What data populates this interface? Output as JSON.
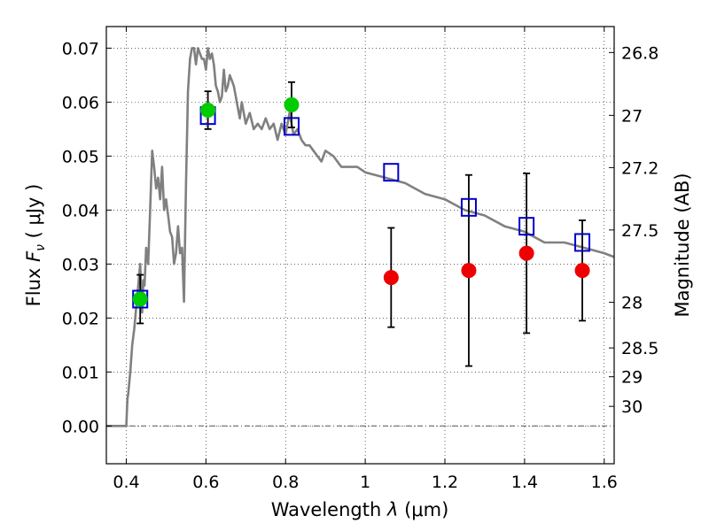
{
  "chart_data": {
    "type": "scatter",
    "xlabel": "Wavelength",
    "xlabel_symbol": "λ",
    "xlabel_unit": "(μm)",
    "ylabel": "Flux",
    "ylabel_symbol": "F",
    "ylabel_subscript": "ν",
    "ylabel_unit": "( μJy )",
    "y2label": "Magnitude (AB)",
    "xlim": [
      0.35,
      1.625
    ],
    "ylim": [
      -0.007,
      0.074
    ],
    "xticks": [
      {
        "value": 0.4,
        "label": "0.4"
      },
      {
        "value": 0.6,
        "label": "0.6"
      },
      {
        "value": 0.8,
        "label": "0.8"
      },
      {
        "value": 1.0,
        "label": "1"
      },
      {
        "value": 1.2,
        "label": "1.2"
      },
      {
        "value": 1.4,
        "label": "1.4"
      },
      {
        "value": 1.6,
        "label": "1.6"
      }
    ],
    "yticks": [
      {
        "value": 0.0,
        "label": "0.00"
      },
      {
        "value": 0.01,
        "label": "0.01"
      },
      {
        "value": 0.02,
        "label": "0.02"
      },
      {
        "value": 0.03,
        "label": "0.03"
      },
      {
        "value": 0.04,
        "label": "0.04"
      },
      {
        "value": 0.05,
        "label": "0.05"
      },
      {
        "value": 0.06,
        "label": "0.06"
      },
      {
        "value": 0.07,
        "label": "0.07"
      }
    ],
    "mag_ticks": [
      {
        "mag": 26.8,
        "label": "26.8"
      },
      {
        "mag": 27.0,
        "label": "27"
      },
      {
        "mag": 27.2,
        "label": "27.2"
      },
      {
        "mag": 27.5,
        "label": "27.5"
      },
      {
        "mag": 28.0,
        "label": "28"
      },
      {
        "mag": 28.5,
        "label": "28.5"
      },
      {
        "mag": 29.0,
        "label": "29"
      },
      {
        "mag": 30.0,
        "label": "30"
      }
    ],
    "grid": true,
    "series": [
      {
        "name": "model_spectrum",
        "kind": "line",
        "color": "#808080",
        "x": [
          0.35,
          0.4,
          0.403,
          0.405,
          0.41,
          0.415,
          0.42,
          0.425,
          0.43,
          0.435,
          0.44,
          0.443,
          0.446,
          0.45,
          0.455,
          0.46,
          0.465,
          0.47,
          0.475,
          0.48,
          0.485,
          0.49,
          0.495,
          0.5,
          0.505,
          0.51,
          0.515,
          0.52,
          0.525,
          0.53,
          0.535,
          0.54,
          0.545,
          0.55,
          0.555,
          0.56,
          0.565,
          0.57,
          0.575,
          0.58,
          0.585,
          0.59,
          0.595,
          0.6,
          0.605,
          0.61,
          0.615,
          0.62,
          0.625,
          0.63,
          0.635,
          0.64,
          0.645,
          0.65,
          0.655,
          0.66,
          0.665,
          0.67,
          0.675,
          0.68,
          0.685,
          0.69,
          0.7,
          0.71,
          0.72,
          0.73,
          0.74,
          0.75,
          0.76,
          0.77,
          0.78,
          0.79,
          0.8,
          0.81,
          0.82,
          0.83,
          0.84,
          0.85,
          0.86,
          0.87,
          0.88,
          0.89,
          0.9,
          0.92,
          0.94,
          0.96,
          0.98,
          1.0,
          1.05,
          1.1,
          1.15,
          1.2,
          1.25,
          1.3,
          1.35,
          1.4,
          1.45,
          1.5,
          1.55,
          1.6,
          1.625
        ],
        "y": [
          0.0,
          0.0,
          0.005,
          0.006,
          0.01,
          0.015,
          0.018,
          0.022,
          0.026,
          0.03,
          0.021,
          0.027,
          0.026,
          0.033,
          0.03,
          0.04,
          0.051,
          0.048,
          0.044,
          0.046,
          0.042,
          0.048,
          0.04,
          0.042,
          0.039,
          0.036,
          0.035,
          0.03,
          0.032,
          0.037,
          0.032,
          0.033,
          0.023,
          0.045,
          0.062,
          0.068,
          0.07,
          0.07,
          0.067,
          0.07,
          0.069,
          0.068,
          0.068,
          0.066,
          0.07,
          0.068,
          0.069,
          0.067,
          0.063,
          0.062,
          0.06,
          0.061,
          0.066,
          0.062,
          0.063,
          0.065,
          0.064,
          0.063,
          0.061,
          0.059,
          0.057,
          0.06,
          0.056,
          0.058,
          0.055,
          0.056,
          0.055,
          0.057,
          0.055,
          0.056,
          0.053,
          0.056,
          0.054,
          0.058,
          0.054,
          0.055,
          0.053,
          0.052,
          0.052,
          0.051,
          0.05,
          0.049,
          0.051,
          0.05,
          0.048,
          0.048,
          0.048,
          0.047,
          0.046,
          0.045,
          0.043,
          0.042,
          0.04,
          0.039,
          0.037,
          0.036,
          0.034,
          0.034,
          0.033,
          0.032,
          0.0313
        ]
      },
      {
        "name": "model_photometry",
        "kind": "open-square",
        "color": "#0000cc",
        "x": [
          0.435,
          0.605,
          0.815,
          1.065,
          1.26,
          1.405,
          1.545
        ],
        "y": [
          0.0235,
          0.0575,
          0.0555,
          0.047,
          0.0405,
          0.037,
          0.034
        ]
      },
      {
        "name": "detections",
        "kind": "filled-circle",
        "color": "#00cc00",
        "x": [
          0.435,
          0.605,
          0.815
        ],
        "y": [
          0.0235,
          0.0585,
          0.0595
        ],
        "err": [
          0.0045,
          0.0035,
          0.0042
        ]
      },
      {
        "name": "nir_measurements",
        "kind": "filled-circle",
        "color": "#ee0000",
        "x": [
          1.065,
          1.26,
          1.405,
          1.545
        ],
        "y": [
          0.0275,
          0.0288,
          0.032,
          0.0288
        ],
        "err": [
          0.0092,
          0.0177,
          0.0148,
          0.0093
        ]
      }
    ]
  }
}
